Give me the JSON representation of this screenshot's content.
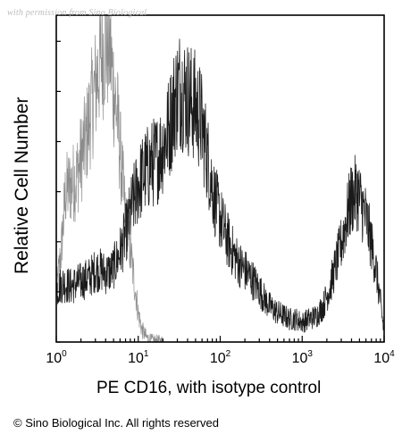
{
  "watermark": "with permission from Sino Biological",
  "copyright": "© Sino Biological Inc. All rights reserved",
  "chart_data": {
    "type": "area",
    "title": "",
    "xlabel": "PE CD16, with isotype control",
    "ylabel": "Relative Cell Number",
    "xscale": "log",
    "xlim": [
      1,
      10000
    ],
    "ylim": [
      0,
      100
    ],
    "x_tick_labels": [
      {
        "base": "10",
        "exp": "0"
      },
      {
        "base": "10",
        "exp": "1"
      },
      {
        "base": "10",
        "exp": "2"
      },
      {
        "base": "10",
        "exp": "3"
      },
      {
        "base": "10",
        "exp": "4"
      }
    ],
    "grid": false,
    "legend": "none",
    "series": [
      {
        "color": "#8c8c8c",
        "x": [
          1.0,
          1.15,
          1.3,
          1.5,
          1.75,
          2.0,
          2.3,
          2.6,
          3.0,
          3.3,
          3.6,
          4.0,
          4.5,
          5.0,
          5.6,
          6.3,
          7.0,
          8.0,
          9.0,
          10.0,
          11.0,
          12.5,
          14.0,
          20.0
        ],
        "y": [
          15,
          28,
          46,
          48,
          50,
          56,
          62,
          70,
          78,
          84,
          88,
          92,
          90,
          78,
          68,
          52,
          38,
          28,
          18,
          9,
          4,
          1.5,
          0.5,
          0
        ]
      },
      {
        "color": "#1a1a1a",
        "x": [
          1.0,
          1.2,
          1.5,
          1.8,
          2.2,
          2.6,
          3.0,
          3.5,
          4.0,
          4.8,
          5.5,
          6.5,
          7.5,
          8.5,
          10,
          12,
          14,
          17,
          20,
          24,
          28,
          32,
          37,
          42,
          50,
          58,
          66,
          75,
          85,
          100,
          120,
          140,
          170,
          200,
          250,
          300,
          350,
          400,
          500,
          600,
          700,
          850,
          1000,
          1200,
          1500,
          1800,
          2200,
          2600,
          3000,
          3500,
          4000,
          4700,
          5300,
          6000,
          7000,
          8000,
          9000,
          10000
        ],
        "y": [
          16,
          18,
          17,
          18,
          19,
          20,
          22,
          22,
          21,
          22,
          25,
          30,
          36,
          42,
          48,
          52,
          54,
          56,
          60,
          66,
          74,
          78,
          76,
          74,
          72,
          68,
          60,
          52,
          44,
          38,
          32,
          28,
          24,
          22,
          19,
          16,
          13,
          11,
          9,
          8,
          7,
          7,
          6,
          7,
          8,
          11,
          17,
          24,
          30,
          38,
          44,
          46,
          42,
          38,
          30,
          22,
          12,
          3
        ]
      }
    ]
  }
}
